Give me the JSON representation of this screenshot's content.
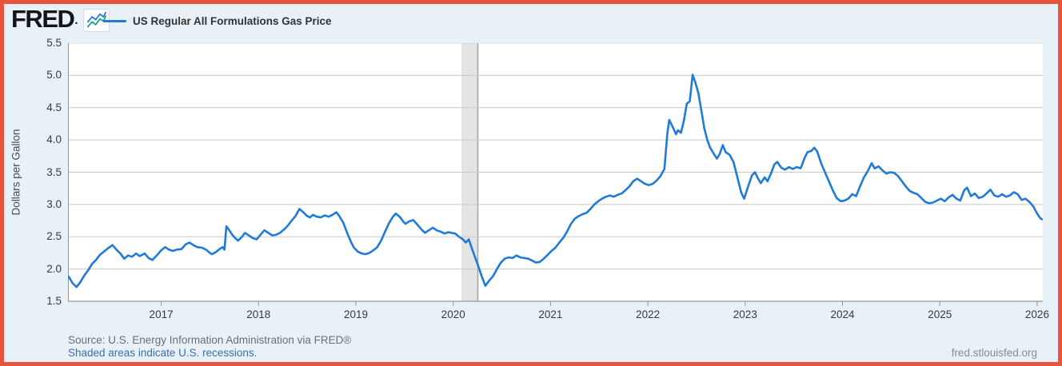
{
  "header": {
    "logo": "FRED",
    "logo_dot": ".",
    "series_label": "US Regular All Formulations Gas Price"
  },
  "footer": {
    "source": "Source: U.S. Energy Information Administration via FRED®",
    "recession_note": "Shaded areas indicate U.S. recessions.",
    "site": "fred.stlouisfed.org"
  },
  "colors": {
    "accent_border": "#e6543e",
    "background": "#e9f1f8",
    "series_line": "#1f7ad8",
    "grid": "#c9c9c9",
    "axis": "#979797",
    "recession_band": "#e4e4e4",
    "recession_band_edge": "#a2a2a2",
    "link": "#3f6eaa",
    "muted_text": "#6f6f6f",
    "site_text": "#8a8a8a",
    "tick_text": "#3a3a3a"
  },
  "chart_data": {
    "type": "line",
    "title": "US Regular All Formulations Gas Price",
    "xlabel": "",
    "ylabel": "Dollars per Gallon",
    "ylim": [
      1.5,
      5.5
    ],
    "xlim": [
      2016.042,
      2026.058
    ],
    "y_ticks": [
      1.5,
      2.0,
      2.5,
      3.0,
      3.5,
      4.0,
      4.5,
      5.0,
      5.5
    ],
    "x_ticks": [
      2017,
      2018,
      2019,
      2020,
      2021,
      2022,
      2023,
      2024,
      2025,
      2026
    ],
    "grid": "horizontal",
    "legend_position": "top-left",
    "recessions": [
      {
        "start": 2020.085,
        "end": 2020.253
      }
    ],
    "series": [
      {
        "name": "US Regular All Formulations Gas Price",
        "color": "#1f7ad8",
        "units": "Dollars per Gallon",
        "points": [
          [
            2016.05,
            1.88
          ],
          [
            2016.09,
            1.78
          ],
          [
            2016.13,
            1.72
          ],
          [
            2016.17,
            1.8
          ],
          [
            2016.21,
            1.9
          ],
          [
            2016.25,
            1.98
          ],
          [
            2016.29,
            2.08
          ],
          [
            2016.33,
            2.14
          ],
          [
            2016.37,
            2.22
          ],
          [
            2016.42,
            2.28
          ],
          [
            2016.46,
            2.33
          ],
          [
            2016.5,
            2.37
          ],
          [
            2016.54,
            2.3
          ],
          [
            2016.58,
            2.24
          ],
          [
            2016.62,
            2.16
          ],
          [
            2016.66,
            2.21
          ],
          [
            2016.7,
            2.19
          ],
          [
            2016.74,
            2.24
          ],
          [
            2016.78,
            2.2
          ],
          [
            2016.83,
            2.24
          ],
          [
            2016.87,
            2.17
          ],
          [
            2016.91,
            2.14
          ],
          [
            2016.96,
            2.22
          ],
          [
            2017.0,
            2.29
          ],
          [
            2017.04,
            2.34
          ],
          [
            2017.08,
            2.3
          ],
          [
            2017.12,
            2.28
          ],
          [
            2017.16,
            2.3
          ],
          [
            2017.21,
            2.31
          ],
          [
            2017.25,
            2.38
          ],
          [
            2017.29,
            2.41
          ],
          [
            2017.33,
            2.37
          ],
          [
            2017.37,
            2.34
          ],
          [
            2017.42,
            2.33
          ],
          [
            2017.46,
            2.3
          ],
          [
            2017.5,
            2.25
          ],
          [
            2017.52,
            2.23
          ],
          [
            2017.56,
            2.26
          ],
          [
            2017.6,
            2.31
          ],
          [
            2017.63,
            2.34
          ],
          [
            2017.65,
            2.3
          ],
          [
            2017.67,
            2.66
          ],
          [
            2017.7,
            2.6
          ],
          [
            2017.73,
            2.53
          ],
          [
            2017.76,
            2.48
          ],
          [
            2017.79,
            2.44
          ],
          [
            2017.83,
            2.5
          ],
          [
            2017.86,
            2.56
          ],
          [
            2017.9,
            2.52
          ],
          [
            2017.94,
            2.48
          ],
          [
            2017.98,
            2.46
          ],
          [
            2018.02,
            2.53
          ],
          [
            2018.06,
            2.6
          ],
          [
            2018.1,
            2.56
          ],
          [
            2018.14,
            2.52
          ],
          [
            2018.18,
            2.53
          ],
          [
            2018.22,
            2.56
          ],
          [
            2018.26,
            2.61
          ],
          [
            2018.3,
            2.67
          ],
          [
            2018.34,
            2.75
          ],
          [
            2018.38,
            2.82
          ],
          [
            2018.42,
            2.93
          ],
          [
            2018.46,
            2.88
          ],
          [
            2018.5,
            2.82
          ],
          [
            2018.53,
            2.8
          ],
          [
            2018.56,
            2.84
          ],
          [
            2018.6,
            2.81
          ],
          [
            2018.64,
            2.8
          ],
          [
            2018.68,
            2.83
          ],
          [
            2018.72,
            2.81
          ],
          [
            2018.76,
            2.84
          ],
          [
            2018.8,
            2.88
          ],
          [
            2018.83,
            2.82
          ],
          [
            2018.87,
            2.72
          ],
          [
            2018.91,
            2.56
          ],
          [
            2018.95,
            2.42
          ],
          [
            2018.98,
            2.33
          ],
          [
            2019.02,
            2.27
          ],
          [
            2019.06,
            2.24
          ],
          [
            2019.1,
            2.23
          ],
          [
            2019.14,
            2.25
          ],
          [
            2019.18,
            2.29
          ],
          [
            2019.22,
            2.34
          ],
          [
            2019.26,
            2.44
          ],
          [
            2019.3,
            2.58
          ],
          [
            2019.34,
            2.71
          ],
          [
            2019.38,
            2.81
          ],
          [
            2019.41,
            2.86
          ],
          [
            2019.45,
            2.81
          ],
          [
            2019.49,
            2.73
          ],
          [
            2019.51,
            2.7
          ],
          [
            2019.55,
            2.74
          ],
          [
            2019.59,
            2.76
          ],
          [
            2019.63,
            2.69
          ],
          [
            2019.67,
            2.62
          ],
          [
            2019.71,
            2.56
          ],
          [
            2019.75,
            2.6
          ],
          [
            2019.79,
            2.64
          ],
          [
            2019.83,
            2.6
          ],
          [
            2019.87,
            2.58
          ],
          [
            2019.91,
            2.55
          ],
          [
            2019.95,
            2.57
          ],
          [
            2019.98,
            2.56
          ],
          [
            2020.02,
            2.55
          ],
          [
            2020.06,
            2.5
          ],
          [
            2020.1,
            2.46
          ],
          [
            2020.13,
            2.41
          ],
          [
            2020.16,
            2.46
          ],
          [
            2020.19,
            2.33
          ],
          [
            2020.22,
            2.2
          ],
          [
            2020.25,
            2.08
          ],
          [
            2020.29,
            1.9
          ],
          [
            2020.33,
            1.74
          ],
          [
            2020.37,
            1.82
          ],
          [
            2020.41,
            1.89
          ],
          [
            2020.45,
            2.0
          ],
          [
            2020.49,
            2.1
          ],
          [
            2020.53,
            2.16
          ],
          [
            2020.57,
            2.18
          ],
          [
            2020.61,
            2.17
          ],
          [
            2020.65,
            2.21
          ],
          [
            2020.69,
            2.18
          ],
          [
            2020.73,
            2.17
          ],
          [
            2020.77,
            2.16
          ],
          [
            2020.81,
            2.13
          ],
          [
            2020.85,
            2.1
          ],
          [
            2020.89,
            2.11
          ],
          [
            2020.93,
            2.16
          ],
          [
            2020.97,
            2.22
          ],
          [
            2021.01,
            2.28
          ],
          [
            2021.05,
            2.33
          ],
          [
            2021.09,
            2.41
          ],
          [
            2021.13,
            2.48
          ],
          [
            2021.17,
            2.58
          ],
          [
            2021.21,
            2.7
          ],
          [
            2021.25,
            2.78
          ],
          [
            2021.29,
            2.82
          ],
          [
            2021.33,
            2.85
          ],
          [
            2021.37,
            2.87
          ],
          [
            2021.41,
            2.93
          ],
          [
            2021.45,
            3.0
          ],
          [
            2021.49,
            3.05
          ],
          [
            2021.53,
            3.09
          ],
          [
            2021.57,
            3.12
          ],
          [
            2021.61,
            3.14
          ],
          [
            2021.65,
            3.12
          ],
          [
            2021.69,
            3.15
          ],
          [
            2021.73,
            3.17
          ],
          [
            2021.77,
            3.22
          ],
          [
            2021.81,
            3.28
          ],
          [
            2021.85,
            3.36
          ],
          [
            2021.89,
            3.4
          ],
          [
            2021.93,
            3.36
          ],
          [
            2021.97,
            3.32
          ],
          [
            2022.01,
            3.3
          ],
          [
            2022.05,
            3.32
          ],
          [
            2022.09,
            3.37
          ],
          [
            2022.13,
            3.44
          ],
          [
            2022.17,
            3.55
          ],
          [
            2022.2,
            4.1
          ],
          [
            2022.22,
            4.31
          ],
          [
            2022.25,
            4.22
          ],
          [
            2022.29,
            4.09
          ],
          [
            2022.31,
            4.15
          ],
          [
            2022.34,
            4.11
          ],
          [
            2022.37,
            4.3
          ],
          [
            2022.4,
            4.56
          ],
          [
            2022.43,
            4.6
          ],
          [
            2022.46,
            5.01
          ],
          [
            2022.49,
            4.88
          ],
          [
            2022.52,
            4.72
          ],
          [
            2022.55,
            4.45
          ],
          [
            2022.58,
            4.18
          ],
          [
            2022.61,
            4.0
          ],
          [
            2022.64,
            3.88
          ],
          [
            2022.68,
            3.78
          ],
          [
            2022.71,
            3.71
          ],
          [
            2022.74,
            3.79
          ],
          [
            2022.77,
            3.92
          ],
          [
            2022.8,
            3.81
          ],
          [
            2022.84,
            3.77
          ],
          [
            2022.88,
            3.66
          ],
          [
            2022.92,
            3.42
          ],
          [
            2022.96,
            3.18
          ],
          [
            2022.99,
            3.09
          ],
          [
            2023.03,
            3.28
          ],
          [
            2023.07,
            3.45
          ],
          [
            2023.1,
            3.5
          ],
          [
            2023.13,
            3.41
          ],
          [
            2023.16,
            3.33
          ],
          [
            2023.2,
            3.42
          ],
          [
            2023.23,
            3.36
          ],
          [
            2023.27,
            3.5
          ],
          [
            2023.3,
            3.62
          ],
          [
            2023.33,
            3.66
          ],
          [
            2023.37,
            3.57
          ],
          [
            2023.41,
            3.54
          ],
          [
            2023.45,
            3.58
          ],
          [
            2023.49,
            3.55
          ],
          [
            2023.53,
            3.58
          ],
          [
            2023.57,
            3.56
          ],
          [
            2023.61,
            3.72
          ],
          [
            2023.64,
            3.81
          ],
          [
            2023.68,
            3.83
          ],
          [
            2023.71,
            3.88
          ],
          [
            2023.74,
            3.82
          ],
          [
            2023.78,
            3.64
          ],
          [
            2023.82,
            3.5
          ],
          [
            2023.86,
            3.36
          ],
          [
            2023.9,
            3.22
          ],
          [
            2023.94,
            3.1
          ],
          [
            2023.98,
            3.05
          ],
          [
            2024.02,
            3.06
          ],
          [
            2024.06,
            3.09
          ],
          [
            2024.1,
            3.16
          ],
          [
            2024.14,
            3.13
          ],
          [
            2024.18,
            3.28
          ],
          [
            2024.22,
            3.42
          ],
          [
            2024.26,
            3.52
          ],
          [
            2024.3,
            3.64
          ],
          [
            2024.33,
            3.56
          ],
          [
            2024.37,
            3.59
          ],
          [
            2024.41,
            3.53
          ],
          [
            2024.45,
            3.48
          ],
          [
            2024.49,
            3.5
          ],
          [
            2024.53,
            3.49
          ],
          [
            2024.57,
            3.44
          ],
          [
            2024.61,
            3.36
          ],
          [
            2024.65,
            3.28
          ],
          [
            2024.69,
            3.21
          ],
          [
            2024.73,
            3.18
          ],
          [
            2024.77,
            3.16
          ],
          [
            2024.81,
            3.1
          ],
          [
            2024.85,
            3.04
          ],
          [
            2024.89,
            3.02
          ],
          [
            2024.93,
            3.03
          ],
          [
            2024.97,
            3.06
          ],
          [
            2025.01,
            3.09
          ],
          [
            2025.05,
            3.05
          ],
          [
            2025.09,
            3.11
          ],
          [
            2025.13,
            3.15
          ],
          [
            2025.17,
            3.09
          ],
          [
            2025.21,
            3.06
          ],
          [
            2025.25,
            3.22
          ],
          [
            2025.28,
            3.26
          ],
          [
            2025.32,
            3.13
          ],
          [
            2025.36,
            3.17
          ],
          [
            2025.4,
            3.1
          ],
          [
            2025.44,
            3.12
          ],
          [
            2025.48,
            3.17
          ],
          [
            2025.52,
            3.23
          ],
          [
            2025.56,
            3.14
          ],
          [
            2025.6,
            3.12
          ],
          [
            2025.64,
            3.16
          ],
          [
            2025.68,
            3.12
          ],
          [
            2025.72,
            3.14
          ],
          [
            2025.76,
            3.19
          ],
          [
            2025.8,
            3.16
          ],
          [
            2025.84,
            3.07
          ],
          [
            2025.88,
            3.09
          ],
          [
            2025.92,
            3.04
          ],
          [
            2025.96,
            2.97
          ],
          [
            2026.0,
            2.86
          ],
          [
            2026.03,
            2.79
          ],
          [
            2026.05,
            2.77
          ]
        ]
      }
    ]
  }
}
